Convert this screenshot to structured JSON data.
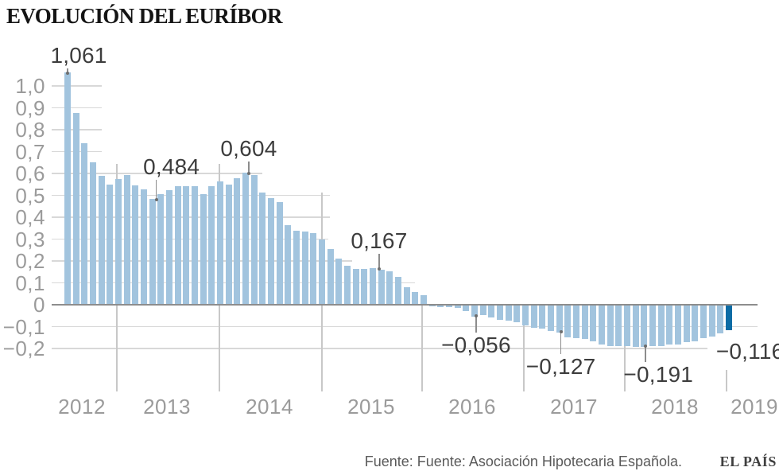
{
  "title": "EVOLUCIÓN DEL EURÍBOR",
  "footer": {
    "source": "Fuente: Fuente: Asociación Hipotecaria Española.",
    "brand": "EL PAÍS"
  },
  "chart_data": {
    "type": "bar",
    "title": "EVOLUCIÓN DEL EURÍBOR",
    "frequency": "monthly",
    "start": "2012-07",
    "end": "2019-01",
    "ylim": [
      -0.2,
      1.1
    ],
    "grid": "stepped-horizontal-gridlines",
    "legend": "none",
    "bar_color": "#a2c4de",
    "highlight_color": "#0c6ca5",
    "highlight_index": 78,
    "series": [
      {
        "name": "Euríbor",
        "values": [
          1.061,
          0.877,
          0.74,
          0.65,
          0.588,
          0.549,
          0.575,
          0.594,
          0.545,
          0.528,
          0.484,
          0.507,
          0.525,
          0.542,
          0.543,
          0.541,
          0.506,
          0.543,
          0.562,
          0.549,
          0.577,
          0.604,
          0.592,
          0.513,
          0.488,
          0.469,
          0.362,
          0.338,
          0.335,
          0.329,
          0.298,
          0.255,
          0.212,
          0.18,
          0.165,
          0.163,
          0.167,
          0.161,
          0.154,
          0.128,
          0.079,
          0.059,
          0.042,
          -0.008,
          -0.012,
          -0.01,
          -0.013,
          -0.028,
          -0.056,
          -0.048,
          -0.057,
          -0.069,
          -0.074,
          -0.08,
          -0.095,
          -0.106,
          -0.11,
          -0.119,
          -0.127,
          -0.149,
          -0.154,
          -0.156,
          -0.168,
          -0.18,
          -0.189,
          -0.19,
          -0.189,
          -0.191,
          -0.191,
          -0.19,
          -0.188,
          -0.181,
          -0.18,
          -0.169,
          -0.166,
          -0.154,
          -0.147,
          -0.129,
          -0.116
        ]
      }
    ],
    "xticks": [
      "2012",
      "2013",
      "2014",
      "2015",
      "2016",
      "2017",
      "2018",
      "2019"
    ],
    "yticks": [
      {
        "label": "1,0",
        "value": 1.0
      },
      {
        "label": "0,9",
        "value": 0.9
      },
      {
        "label": "0,8",
        "value": 0.8
      },
      {
        "label": "0,7",
        "value": 0.7
      },
      {
        "label": "0,6",
        "value": 0.6
      },
      {
        "label": "0,5",
        "value": 0.5
      },
      {
        "label": "0,4",
        "value": 0.4
      },
      {
        "label": "0,3",
        "value": 0.3
      },
      {
        "label": "0,2",
        "value": 0.2
      },
      {
        "label": "0,1",
        "value": 0.1
      },
      {
        "label": "0",
        "value": 0
      },
      {
        "label": "−0,1",
        "value": -0.1
      },
      {
        "label": "−0,2",
        "value": -0.2
      }
    ],
    "annotations": [
      {
        "label": "1,061",
        "value": 1.061,
        "index": 0,
        "side": "above"
      },
      {
        "label": "0,484",
        "value": 0.484,
        "index": 10,
        "side": "above"
      },
      {
        "label": "0,604",
        "value": 0.604,
        "index": 21,
        "side": "above"
      },
      {
        "label": "0,167",
        "value": 0.167,
        "index": 36,
        "side": "above"
      },
      {
        "label": "−0,056",
        "value": -0.056,
        "index": 48,
        "side": "below"
      },
      {
        "label": "−0,127",
        "value": -0.127,
        "index": 58,
        "side": "below"
      },
      {
        "label": "−0,191",
        "value": -0.191,
        "index": 68,
        "side": "below"
      },
      {
        "label": "−0,116",
        "value": -0.116,
        "index": 78,
        "side": "right"
      }
    ]
  }
}
